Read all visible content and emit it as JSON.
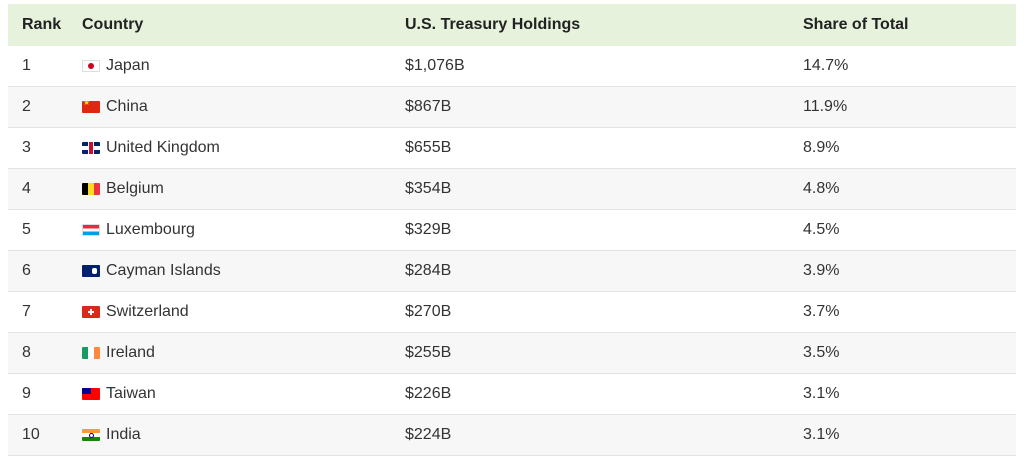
{
  "table": {
    "headers": {
      "rank": "Rank",
      "country": "Country",
      "holdings": "U.S. Treasury Holdings",
      "share": "Share of Total"
    },
    "rows": [
      {
        "rank": "1",
        "flag_icon": "japan-flag-icon",
        "country": "Japan",
        "holdings": "$1,076B",
        "share": "14.7%"
      },
      {
        "rank": "2",
        "flag_icon": "china-flag-icon",
        "country": "China",
        "holdings": "$867B",
        "share": "11.9%"
      },
      {
        "rank": "3",
        "flag_icon": "united-kingdom-flag-icon",
        "country": "United Kingdom",
        "holdings": "$655B",
        "share": "8.9%"
      },
      {
        "rank": "4",
        "flag_icon": "belgium-flag-icon",
        "country": "Belgium",
        "holdings": "$354B",
        "share": "4.8%"
      },
      {
        "rank": "5",
        "flag_icon": "luxembourg-flag-icon",
        "country": "Luxembourg",
        "holdings": "$329B",
        "share": "4.5%"
      },
      {
        "rank": "6",
        "flag_icon": "cayman-islands-flag-icon",
        "country": "Cayman Islands",
        "holdings": "$284B",
        "share": "3.9%"
      },
      {
        "rank": "7",
        "flag_icon": "switzerland-flag-icon",
        "country": "Switzerland",
        "holdings": "$270B",
        "share": "3.7%"
      },
      {
        "rank": "8",
        "flag_icon": "ireland-flag-icon",
        "country": "Ireland",
        "holdings": "$255B",
        "share": "3.5%"
      },
      {
        "rank": "9",
        "flag_icon": "taiwan-flag-icon",
        "country": "Taiwan",
        "holdings": "$226B",
        "share": "3.1%"
      },
      {
        "rank": "10",
        "flag_icon": "india-flag-icon",
        "country": "India",
        "holdings": "$224B",
        "share": "3.1%"
      }
    ]
  },
  "colors": {
    "header_background": "#e6f2dc",
    "alternate_row_background": "#f7f7f7",
    "text": "#333333"
  }
}
